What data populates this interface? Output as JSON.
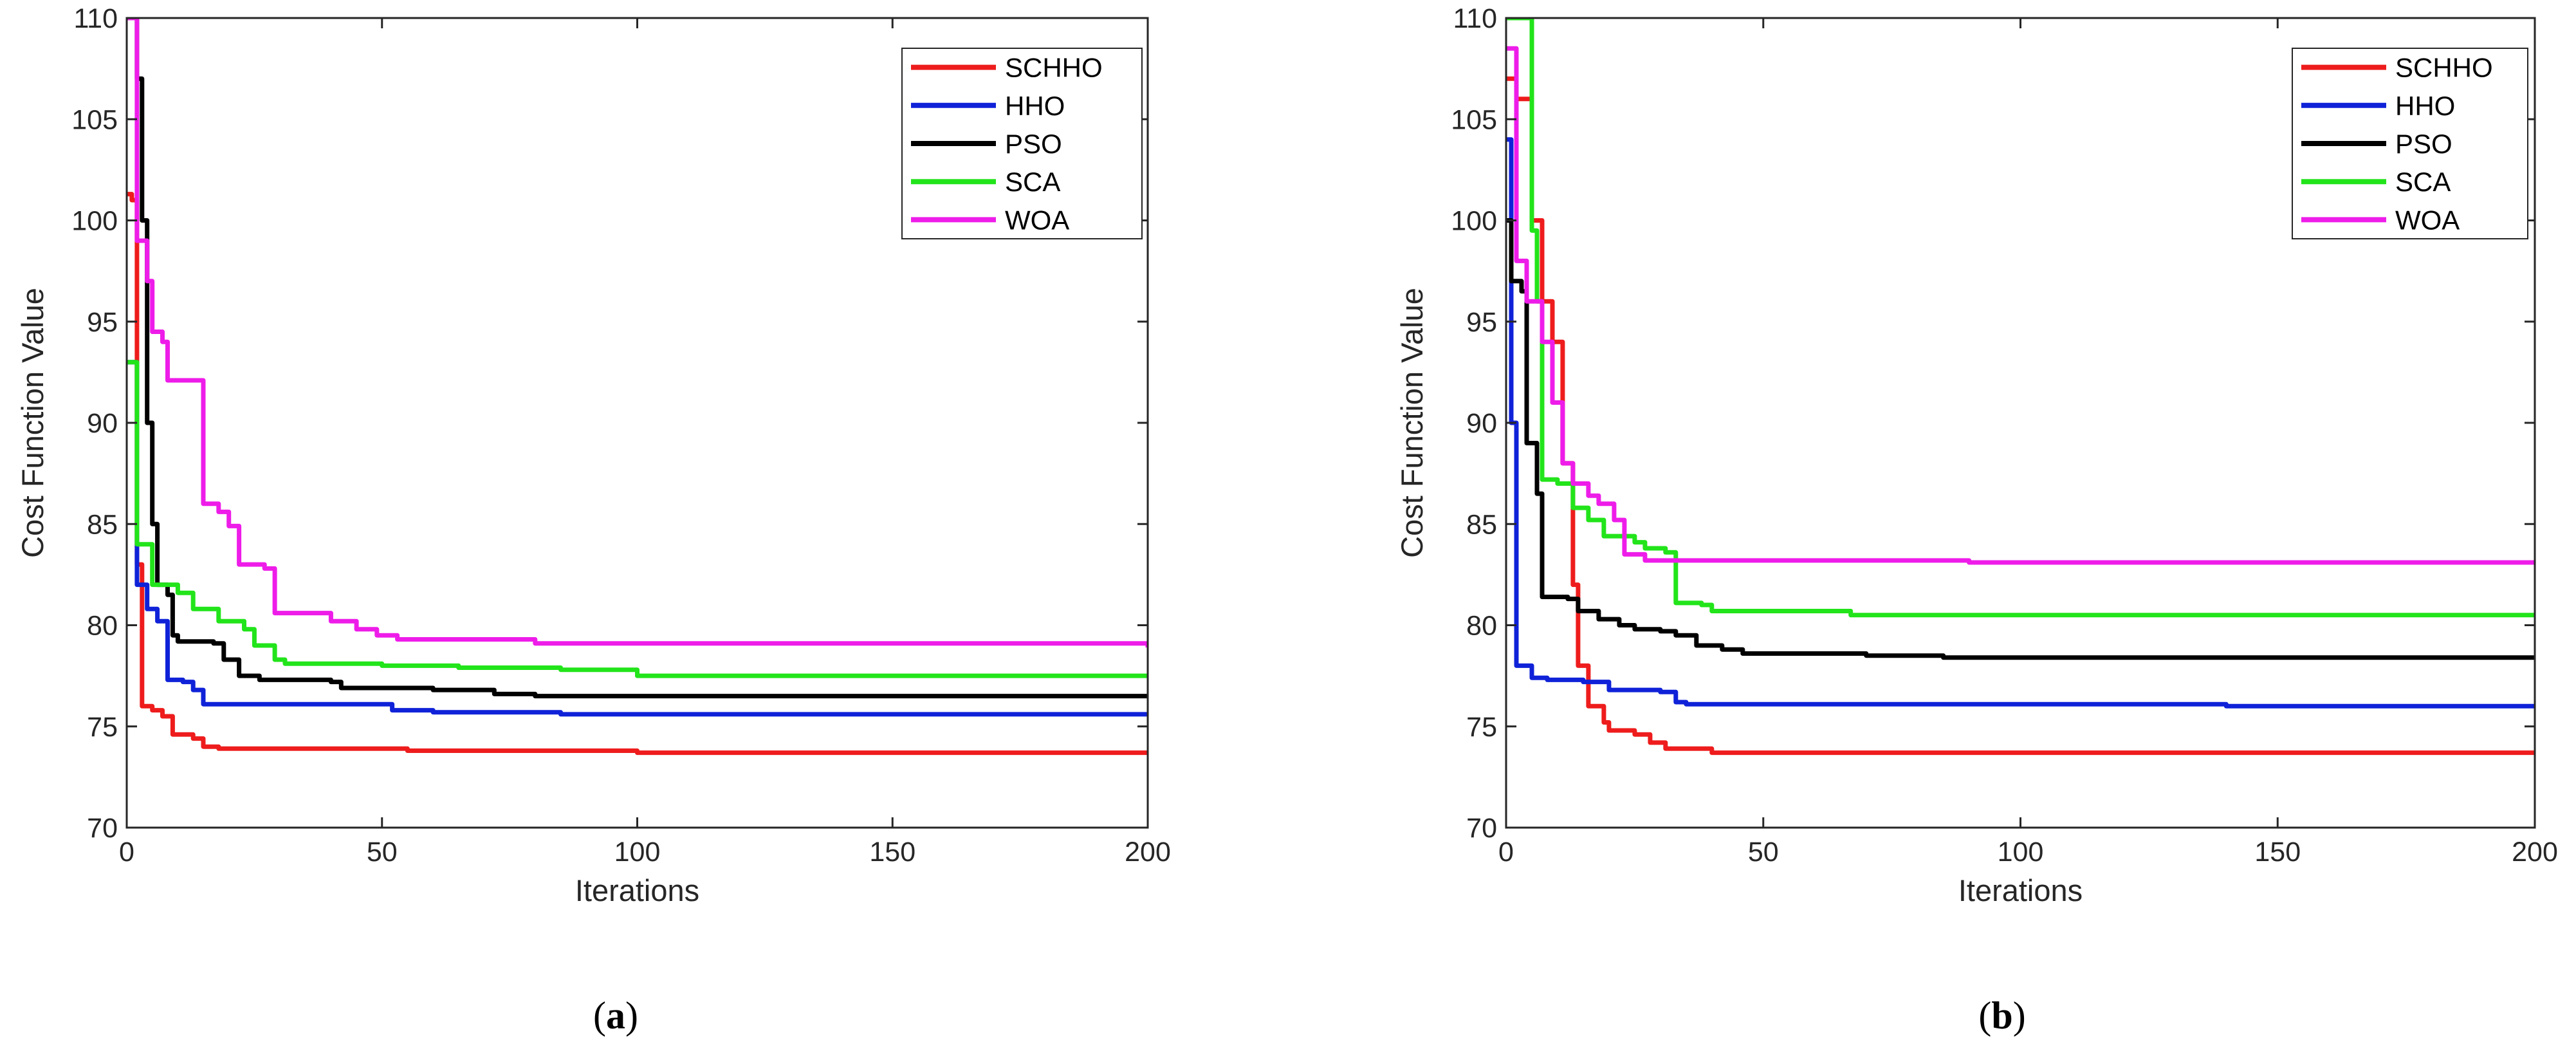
{
  "chart_data": [
    {
      "type": "line",
      "panel_label": "a",
      "title": "",
      "xlabel": "Iterations",
      "ylabel": "Cost Function Value",
      "xlim": [
        0,
        200
      ],
      "ylim": [
        70,
        110
      ],
      "xticks": [
        "0",
        "50",
        "100",
        "150",
        "200"
      ],
      "yticks": [
        "70",
        "75",
        "80",
        "85",
        "90",
        "95",
        "100",
        "105",
        "110"
      ],
      "grid": false,
      "legend_position": "top-right",
      "series": [
        {
          "name": "SCHHO",
          "color": "#ee1c1c",
          "points": [
            [
              0,
              101.3
            ],
            [
              1,
              101
            ],
            [
              2,
              83
            ],
            [
              3,
              76
            ],
            [
              5,
              75.8
            ],
            [
              7,
              75.5
            ],
            [
              9,
              74.6
            ],
            [
              13,
              74.4
            ],
            [
              15,
              74
            ],
            [
              18,
              73.9
            ],
            [
              40,
              73.9
            ],
            [
              55,
              73.8
            ],
            [
              100,
              73.7
            ],
            [
              200,
              73.7
            ]
          ]
        },
        {
          "name": "HHO",
          "color": "#0f22d8",
          "points": [
            [
              0,
              93
            ],
            [
              1,
              93
            ],
            [
              2,
              82
            ],
            [
              4,
              80.8
            ],
            [
              6,
              80.2
            ],
            [
              8,
              77.3
            ],
            [
              11,
              77.2
            ],
            [
              13,
              76.8
            ],
            [
              15,
              76.1
            ],
            [
              50,
              76.1
            ],
            [
              52,
              75.8
            ],
            [
              60,
              75.7
            ],
            [
              85,
              75.6
            ],
            [
              200,
              75.5
            ]
          ]
        },
        {
          "name": "PSO",
          "color": "#000000",
          "points": [
            [
              0,
              110
            ],
            [
              1,
              110
            ],
            [
              2,
              107
            ],
            [
              3,
              100
            ],
            [
              4,
              90
            ],
            [
              5,
              85
            ],
            [
              6,
              82
            ],
            [
              8,
              81.5
            ],
            [
              9,
              79.5
            ],
            [
              10,
              79.2
            ],
            [
              17,
              79.1
            ],
            [
              19,
              78.3
            ],
            [
              22,
              77.5
            ],
            [
              26,
              77.3
            ],
            [
              40,
              77.2
            ],
            [
              42,
              76.9
            ],
            [
              60,
              76.8
            ],
            [
              72,
              76.6
            ],
            [
              80,
              76.5
            ],
            [
              200,
              76.4
            ]
          ]
        },
        {
          "name": "SCA",
          "color": "#22e41a",
          "points": [
            [
              0,
              93
            ],
            [
              1,
              93
            ],
            [
              2,
              84
            ],
            [
              5,
              82
            ],
            [
              10,
              81.6
            ],
            [
              13,
              80.8
            ],
            [
              18,
              80.2
            ],
            [
              23,
              79.8
            ],
            [
              25,
              79
            ],
            [
              29,
              78.3
            ],
            [
              31,
              78.1
            ],
            [
              50,
              78
            ],
            [
              65,
              77.9
            ],
            [
              85,
              77.8
            ],
            [
              100,
              77.5
            ],
            [
              200,
              77.5
            ]
          ]
        },
        {
          "name": "WOA",
          "color": "#ee1ce9",
          "points": [
            [
              0,
              110
            ],
            [
              1,
              110
            ],
            [
              2,
              99
            ],
            [
              4,
              97
            ],
            [
              5,
              94.5
            ],
            [
              7,
              94
            ],
            [
              8,
              92.1
            ],
            [
              14,
              92.1
            ],
            [
              15,
              86
            ],
            [
              18,
              85.6
            ],
            [
              20,
              84.9
            ],
            [
              22,
              83
            ],
            [
              27,
              82.8
            ],
            [
              29,
              80.6
            ],
            [
              40,
              80.2
            ],
            [
              45,
              79.8
            ],
            [
              49,
              79.5
            ],
            [
              53,
              79.3
            ],
            [
              80,
              79.1
            ],
            [
              200,
              78.9
            ]
          ]
        }
      ]
    },
    {
      "type": "line",
      "panel_label": "b",
      "title": "",
      "xlabel": "Iterations",
      "ylabel": "Cost Function Value",
      "xlim": [
        0,
        200
      ],
      "ylim": [
        70,
        110
      ],
      "xticks": [
        "0",
        "50",
        "100",
        "150",
        "200"
      ],
      "yticks": [
        "70",
        "75",
        "80",
        "85",
        "90",
        "95",
        "100",
        "105",
        "110"
      ],
      "grid": false,
      "legend_position": "top-right",
      "series": [
        {
          "name": "SCHHO",
          "color": "#ee1c1c",
          "points": [
            [
              0,
              107
            ],
            [
              2,
              106
            ],
            [
              5,
              100
            ],
            [
              7,
              96
            ],
            [
              9,
              94
            ],
            [
              11,
              88
            ],
            [
              13,
              82
            ],
            [
              14,
              78
            ],
            [
              16,
              76
            ],
            [
              19,
              75.2
            ],
            [
              20,
              74.8
            ],
            [
              25,
              74.6
            ],
            [
              28,
              74.2
            ],
            [
              31,
              73.9
            ],
            [
              40,
              73.7
            ],
            [
              200,
              73.7
            ]
          ]
        },
        {
          "name": "HHO",
          "color": "#0f22d8",
          "points": [
            [
              0,
              104
            ],
            [
              1,
              90
            ],
            [
              2,
              78
            ],
            [
              5,
              77.4
            ],
            [
              8,
              77.3
            ],
            [
              15,
              77.2
            ],
            [
              20,
              76.8
            ],
            [
              30,
              76.7
            ],
            [
              33,
              76.2
            ],
            [
              35,
              76.1
            ],
            [
              100,
              76.1
            ],
            [
              135,
              76.1
            ],
            [
              140,
              76
            ],
            [
              200,
              76
            ]
          ]
        },
        {
          "name": "PSO",
          "color": "#000000",
          "points": [
            [
              0,
              100
            ],
            [
              1,
              97
            ],
            [
              3,
              96.5
            ],
            [
              4,
              89
            ],
            [
              6,
              86.5
            ],
            [
              7,
              81.4
            ],
            [
              12,
              81.3
            ],
            [
              14,
              80.7
            ],
            [
              18,
              80.3
            ],
            [
              22,
              80
            ],
            [
              25,
              79.8
            ],
            [
              30,
              79.7
            ],
            [
              33,
              79.5
            ],
            [
              37,
              79
            ],
            [
              42,
              78.8
            ],
            [
              46,
              78.6
            ],
            [
              60,
              78.6
            ],
            [
              70,
              78.5
            ],
            [
              85,
              78.4
            ],
            [
              200,
              78.3
            ]
          ]
        },
        {
          "name": "SCA",
          "color": "#22e41a",
          "points": [
            [
              0,
              110
            ],
            [
              3,
              110
            ],
            [
              5,
              99.5
            ],
            [
              6,
              96
            ],
            [
              7,
              87.2
            ],
            [
              10,
              87
            ],
            [
              13,
              85.8
            ],
            [
              16,
              85.2
            ],
            [
              19,
              84.4
            ],
            [
              25,
              84.1
            ],
            [
              27,
              83.8
            ],
            [
              31,
              83.6
            ],
            [
              33,
              81.1
            ],
            [
              38,
              81
            ],
            [
              40,
              80.7
            ],
            [
              65,
              80.7
            ],
            [
              67,
              80.5
            ],
            [
              200,
              80.4
            ]
          ]
        },
        {
          "name": "WOA",
          "color": "#ee1ce9",
          "points": [
            [
              0,
              108.5
            ],
            [
              2,
              98
            ],
            [
              4,
              96
            ],
            [
              7,
              94
            ],
            [
              9,
              91
            ],
            [
              11,
              88
            ],
            [
              13,
              87
            ],
            [
              16,
              86.4
            ],
            [
              18,
              86
            ],
            [
              21,
              85.2
            ],
            [
              23,
              83.5
            ],
            [
              27,
              83.2
            ],
            [
              60,
              83.2
            ],
            [
              90,
              83.1
            ],
            [
              200,
              83
            ]
          ]
        }
      ]
    }
  ],
  "panels": [
    {
      "label_open": "(",
      "label_letter": "a",
      "label_close": ")"
    },
    {
      "label_open": "(",
      "label_letter": "b",
      "label_close": ")"
    }
  ]
}
